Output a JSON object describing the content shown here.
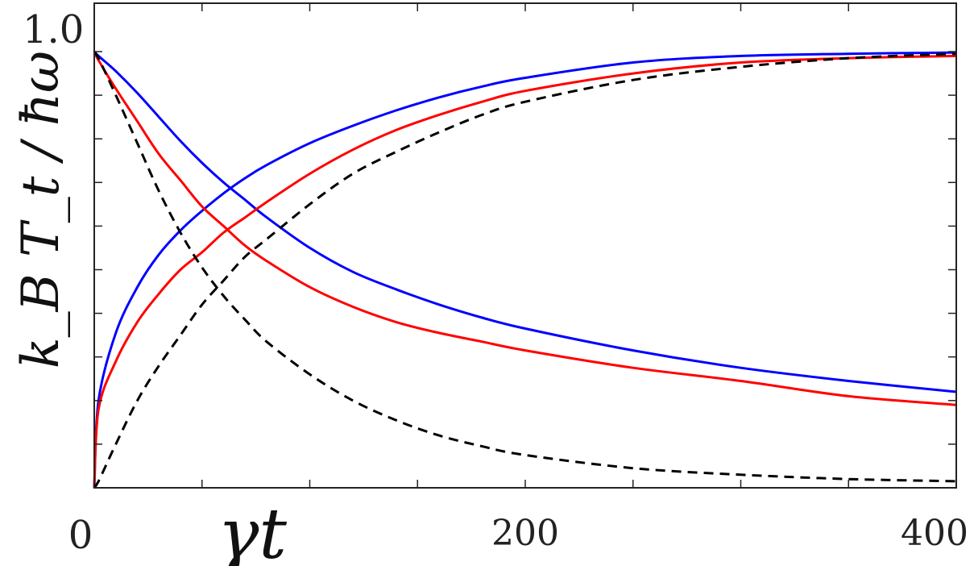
{
  "chart_data": {
    "type": "line",
    "xlabel": "γt",
    "ylabel": "k_B T_t / ħω",
    "xlim": [
      0,
      400
    ],
    "ylim": [
      0,
      1.0
    ],
    "x_ticks_labeled": [
      "0",
      "200",
      "400"
    ],
    "y_ticks_labeled": [
      "1.0"
    ],
    "grid": false,
    "legend": "none",
    "x": [
      0,
      2,
      10,
      20,
      30,
      40,
      50,
      60,
      70,
      80,
      100,
      120,
      140,
      160,
      180,
      200,
      250,
      300,
      350,
      400
    ],
    "series": [
      {
        "color": "#0000ff",
        "dash": "solid",
        "values": [
          0.0,
          0.2,
          0.355,
          0.46,
          0.535,
          0.59,
          0.635,
          0.675,
          0.71,
          0.74,
          0.79,
          0.83,
          0.865,
          0.895,
          0.92,
          0.94,
          0.975,
          0.99,
          0.995,
          0.998
        ]
      },
      {
        "color": "#0000ff",
        "dash": "solid",
        "values": [
          1.0,
          0.99,
          0.955,
          0.905,
          0.85,
          0.795,
          0.745,
          0.7,
          0.66,
          0.62,
          0.55,
          0.495,
          0.455,
          0.42,
          0.39,
          0.365,
          0.315,
          0.275,
          0.245,
          0.22
        ]
      },
      {
        "color": "#ff0000",
        "dash": "solid",
        "values": [
          0.0,
          0.18,
          0.29,
          0.38,
          0.445,
          0.5,
          0.54,
          0.585,
          0.62,
          0.655,
          0.72,
          0.775,
          0.82,
          0.855,
          0.885,
          0.91,
          0.95,
          0.975,
          0.985,
          0.99
        ]
      },
      {
        "color": "#ff0000",
        "dash": "solid",
        "values": [
          1.0,
          0.98,
          0.915,
          0.84,
          0.765,
          0.705,
          0.645,
          0.6,
          0.555,
          0.52,
          0.46,
          0.415,
          0.38,
          0.355,
          0.335,
          0.315,
          0.275,
          0.245,
          0.21,
          0.19
        ]
      },
      {
        "color": "#000000",
        "dash": "dashed",
        "values": [
          0.0,
          0.015,
          0.1,
          0.2,
          0.28,
          0.35,
          0.42,
          0.475,
          0.53,
          0.57,
          0.65,
          0.72,
          0.77,
          0.815,
          0.855,
          0.885,
          0.935,
          0.965,
          0.985,
          0.995
        ]
      },
      {
        "color": "#000000",
        "dash": "dashed",
        "values": [
          1.0,
          0.985,
          0.9,
          0.79,
          0.68,
          0.585,
          0.505,
          0.44,
          0.385,
          0.335,
          0.26,
          0.2,
          0.155,
          0.12,
          0.095,
          0.075,
          0.045,
          0.03,
          0.02,
          0.015
        ]
      }
    ]
  }
}
